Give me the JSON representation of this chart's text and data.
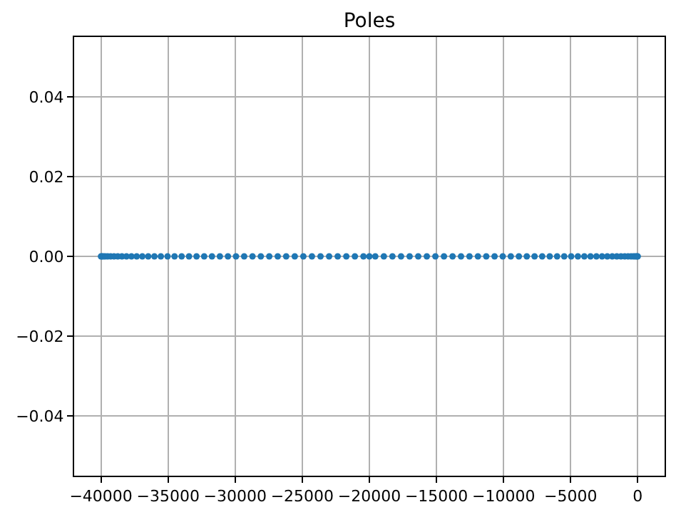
{
  "chart_data": {
    "type": "scatter",
    "title": "Poles",
    "x": [
      -40000,
      -39940,
      -39820,
      -39680,
      -39500,
      -39280,
      -39030,
      -38750,
      -38440,
      -38100,
      -37730,
      -37340,
      -36920,
      -36480,
      -36020,
      -35540,
      -35040,
      -34520,
      -33990,
      -33440,
      -32880,
      -32310,
      -31730,
      -31140,
      -30540,
      -29940,
      -29330,
      -28710,
      -28090,
      -27460,
      -26830,
      -26200,
      -25560,
      -24920,
      -24280,
      -23640,
      -23000,
      -22360,
      -21720,
      -21080,
      -20440,
      -20000,
      -19560,
      -18920,
      -18280,
      -17640,
      -17000,
      -16360,
      -15720,
      -15080,
      -14440,
      -13800,
      -13170,
      -12540,
      -11910,
      -11290,
      -10670,
      -10060,
      -9460,
      -8860,
      -8270,
      -7690,
      -7120,
      -6560,
      -6010,
      -5480,
      -4960,
      -4460,
      -3980,
      -3520,
      -3080,
      -2660,
      -2270,
      -1900,
      -1560,
      -1250,
      -970,
      -720,
      -500,
      -320,
      -180,
      -60,
      0
    ],
    "values": [
      0,
      0,
      0,
      0,
      0,
      0,
      0,
      0,
      0,
      0,
      0,
      0,
      0,
      0,
      0,
      0,
      0,
      0,
      0,
      0,
      0,
      0,
      0,
      0,
      0,
      0,
      0,
      0,
      0,
      0,
      0,
      0,
      0,
      0,
      0,
      0,
      0,
      0,
      0,
      0,
      0,
      0,
      0,
      0,
      0,
      0,
      0,
      0,
      0,
      0,
      0,
      0,
      0,
      0,
      0,
      0,
      0,
      0,
      0,
      0,
      0,
      0,
      0,
      0,
      0,
      0,
      0,
      0,
      0,
      0,
      0,
      0,
      0,
      0,
      0,
      0,
      0,
      0,
      0,
      0,
      0,
      0,
      0
    ],
    "color": "#1f77b4",
    "marker": "circle",
    "grid": true,
    "xlim": [
      -42000,
      2000
    ],
    "xticks": [
      {
        "value": -40000,
        "label": "−40000"
      },
      {
        "value": -35000,
        "label": "−35000"
      },
      {
        "value": -30000,
        "label": "−30000"
      },
      {
        "value": -25000,
        "label": "−25000"
      },
      {
        "value": -20000,
        "label": "−20000"
      },
      {
        "value": -15000,
        "label": "−15000"
      },
      {
        "value": -10000,
        "label": "−10000"
      },
      {
        "value": -5000,
        "label": "−5000"
      },
      0
    ],
    "ylim": [
      -0.055,
      0.055
    ],
    "yticks": [
      {
        "value": -0.04,
        "label": "−0.04"
      },
      {
        "value": -0.02,
        "label": "−0.02"
      },
      {
        "value": 0,
        "label": "0.00"
      },
      {
        "value": 0.02,
        "label": "0.02"
      },
      {
        "value": 0.04,
        "label": "0.04"
      }
    ]
  }
}
